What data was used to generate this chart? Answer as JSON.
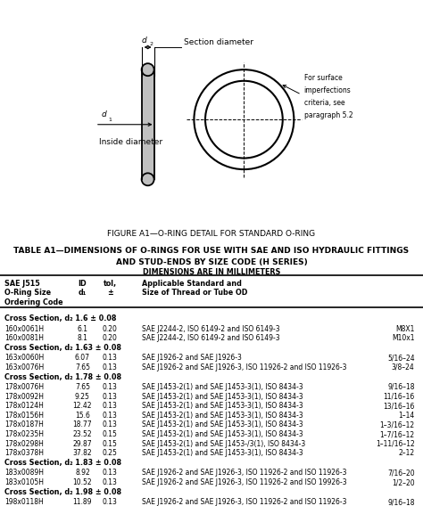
{
  "fig_caption": "FIGURE A1—O-RING DETAIL FOR STANDARD O-RING",
  "table_title_line1": "TABLE A1—DIMENSIONS OF O-RINGS FOR USE WITH SAE AND ISO HYDRAULIC FITTINGS",
  "table_title_line2": "AND STUD-ENDS BY SIZE CODE (H SERIES)",
  "table_subtitle": "DIMENSIONS ARE IN MILLIMETERS",
  "sections": [
    {
      "section_label": "Cross Section, d₂ 1.6 ± 0.08",
      "rows": [
        [
          "160x0061H",
          "6.1",
          "0.20",
          "SAE J2244-2, ISO 6149-2 and ISO 6149-3",
          "M8X1"
        ],
        [
          "160x0081H",
          "8.1",
          "0.20",
          "SAE J2244-2, ISO 6149-2 and ISO 6149-3",
          "M10x1"
        ]
      ]
    },
    {
      "section_label": "Cross Section, d₂ 1.63 ± 0.08",
      "rows": [
        [
          "163x0060H",
          "6.07",
          "0.13",
          "SAE J1926-2 and SAE J1926-3",
          "5/16–24"
        ],
        [
          "163x0076H",
          "7.65",
          "0.13",
          "SAE J1926-2 and SAE J1926-3, ISO 11926-2 and ISO 11926-3",
          "3/8–24"
        ]
      ]
    },
    {
      "section_label": "Cross Section, d₂ 1.78 ± 0.08",
      "rows": [
        [
          "178x0076H",
          "7.65",
          "0.13",
          "SAE J1453-2(1) and SAE J1453-3(1), ISO 8434-3",
          "9/16–18"
        ],
        [
          "178x0092H",
          "9.25",
          "0.13",
          "SAE J1453-2(1) and SAE J1453-3(1), ISO 8434-3",
          "11/16–16"
        ],
        [
          "178x0124H",
          "12.42",
          "0.13",
          "SAE J1453-2(1) and SAE J1453-3(1), ISO 8434-3",
          "13/16–16"
        ],
        [
          "178x0156H",
          "15.6",
          "0.13",
          "SAE J1453-2(1) and SAE J1453-3(1), ISO 8434-3",
          "1–14"
        ],
        [
          "178x0187H",
          "18.77",
          "0.13",
          "SAE J1453-2(1) and SAE J1453-3(1), ISO 8434-3",
          "1–3/16–12"
        ],
        [
          "178x0235H",
          "23.52",
          "0.15",
          "SAE J1453-2(1) and SAE J1453-3(1), ISO 8434-3",
          "1–7/16–12"
        ],
        [
          "178x0298H",
          "29.87",
          "0.15",
          "SAE J1453-2(1) and SAE J1453-/3(1), ISO 8434-3",
          "1–11/16–12"
        ],
        [
          "178x0378H",
          "37.82",
          "0.25",
          "SAE J1453-2(1) and SAE J1453-3(1), ISO 8434-3",
          "2–12"
        ]
      ]
    },
    {
      "section_label": "Cross Section, d₂ 1.83 ± 0.08",
      "rows": [
        [
          "183x0089H",
          "8.92",
          "0.13",
          "SAE J1926-2 and SAE J1926-3, ISO 11926-2 and ISO 11926-3",
          "7/16–20"
        ],
        [
          "183x0105H",
          "10.52",
          "0.13",
          "SAE J1926-2 and SAE J1926-3, ISO 11926-2 and ISO 19926-3",
          "1/2–20"
        ]
      ]
    },
    {
      "section_label": "Cross Section, d₂ 1.98 ± 0.08",
      "rows": [
        [
          "198x0118H",
          "11.89",
          "0.13",
          "SAE J1926-2 and SAE J1926-3, ISO 11926-2 and ISO 11926-3",
          "9/16–18"
        ]
      ]
    }
  ]
}
